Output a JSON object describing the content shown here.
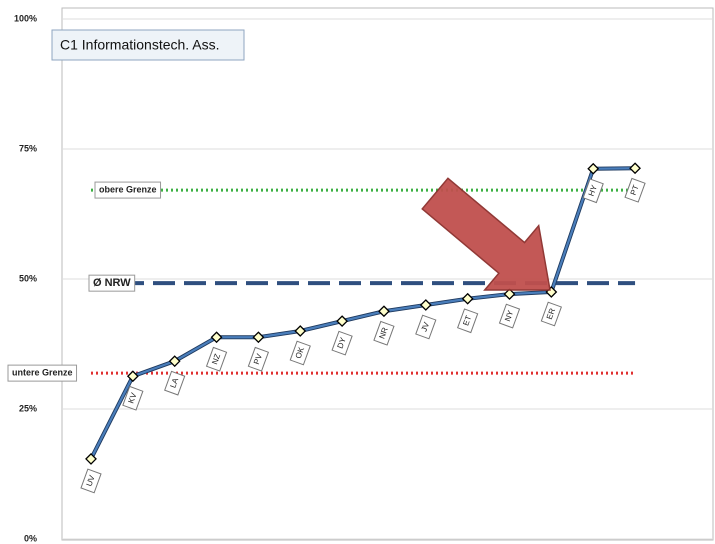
{
  "chart_data": {
    "type": "line",
    "title": "C1 Informationstech. Ass.",
    "categories": [
      "UV",
      "KV",
      "LA",
      "NZ",
      "PV",
      "OK",
      "DY",
      "NR",
      "JV",
      "ET",
      "NY",
      "ER",
      "HY",
      "PT"
    ],
    "series": [
      {
        "color": "#4a7ebb",
        "values": [
          15.4,
          31.3,
          34.2,
          38.8,
          38.8,
          40.0,
          41.9,
          43.8,
          45.0,
          46.2,
          47.1,
          47.5,
          71.2,
          71.3
        ]
      }
    ],
    "reference_lines": [
      {
        "name": "obere Grenze",
        "value": 67.1,
        "color": "#3cb043",
        "style": "dotted"
      },
      {
        "name": "Ø NRW",
        "value": 49.2,
        "color": "#2f4f7f",
        "style": "dashed"
      },
      {
        "name": "untere Grenze",
        "value": 31.9,
        "color": "#e03030",
        "style": "dotted"
      }
    ],
    "ylim": [
      0,
      100
    ],
    "yticks": [
      {
        "value": 0,
        "label": "0%"
      },
      {
        "value": 25,
        "label": "25%"
      },
      {
        "value": 50,
        "label": "50%"
      },
      {
        "value": 75,
        "label": "75%"
      },
      {
        "value": 100,
        "label": "100%"
      }
    ],
    "grid": true
  }
}
